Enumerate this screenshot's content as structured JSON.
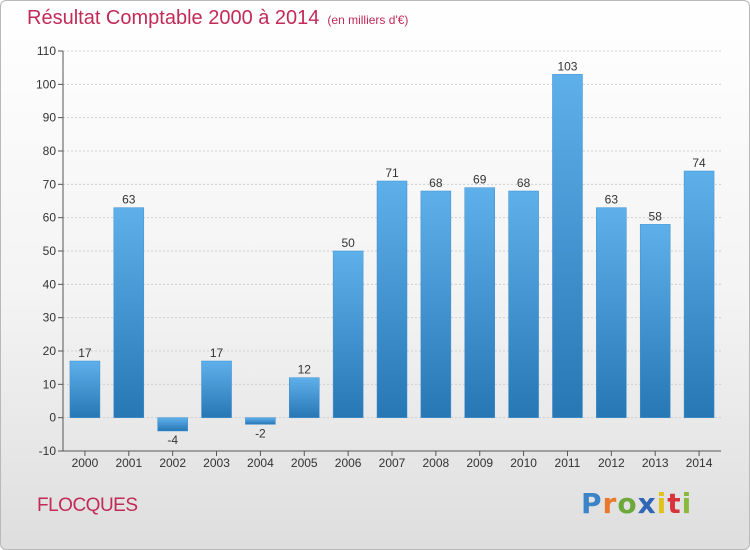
{
  "title": "Résultat Comptable 2000 à 2014",
  "subtitle": "(en milliers d'€)",
  "commune": "FLOCQUES",
  "logo": [
    "P",
    "r",
    "o",
    "x",
    "i",
    "t",
    "i"
  ],
  "colors": {
    "title": "#c22a58",
    "bar_light": "#5eb0ea",
    "bar_dark": "#2877b5",
    "grid": "#cfcfcf"
  },
  "chart_data": {
    "type": "bar",
    "title": "Résultat Comptable 2000 à 2014",
    "subtitle": "(en milliers d'€)",
    "categories": [
      "2000",
      "2001",
      "2002",
      "2003",
      "2004",
      "2005",
      "2006",
      "2007",
      "2008",
      "2009",
      "2010",
      "2011",
      "2012",
      "2013",
      "2014"
    ],
    "values": [
      17,
      63,
      -4,
      17,
      -2,
      12,
      50,
      71,
      68,
      69,
      68,
      103,
      63,
      58,
      74
    ],
    "ylim": [
      -10,
      110
    ],
    "yticks": [
      -10,
      0,
      10,
      20,
      30,
      40,
      50,
      60,
      70,
      80,
      90,
      100,
      110
    ],
    "grid": true,
    "legend": "none"
  }
}
